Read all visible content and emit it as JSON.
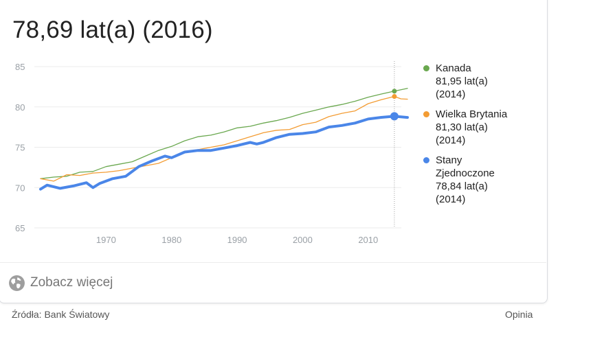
{
  "headline": "78,69 lat(a) (2016)",
  "chart_data": {
    "type": "line",
    "xlim": [
      1960,
      2016
    ],
    "ylim": [
      65,
      85
    ],
    "yticks": [
      65,
      70,
      75,
      80,
      85
    ],
    "xticks": [
      1970,
      1980,
      1990,
      2000,
      2010
    ],
    "yticklabels": [
      "65",
      "70",
      "75",
      "80",
      "85"
    ],
    "xticklabels": [
      "1970",
      "1980",
      "1990",
      "2000",
      "2010"
    ],
    "grid": true,
    "legend_position": "right",
    "highlight_x": 2014,
    "series": [
      {
        "name": "Kanada",
        "color": "#6aa84f",
        "x": [
          1960,
          1962,
          1964,
          1966,
          1968,
          1970,
          1972,
          1974,
          1976,
          1978,
          1980,
          1982,
          1984,
          1986,
          1988,
          1990,
          1992,
          1994,
          1996,
          1998,
          2000,
          2002,
          2004,
          2006,
          2008,
          2010,
          2012,
          2014,
          2016
        ],
        "values": [
          71.1,
          71.3,
          71.4,
          71.9,
          72.0,
          72.6,
          72.9,
          73.2,
          73.9,
          74.6,
          75.1,
          75.8,
          76.3,
          76.5,
          76.9,
          77.4,
          77.6,
          78.0,
          78.3,
          78.7,
          79.2,
          79.6,
          80.0,
          80.3,
          80.7,
          81.2,
          81.6,
          81.95,
          82.3
        ]
      },
      {
        "name": "Wielka Brytania",
        "color": "#f39c33",
        "x": [
          1960,
          1962,
          1964,
          1966,
          1968,
          1970,
          1972,
          1974,
          1976,
          1978,
          1980,
          1982,
          1984,
          1986,
          1988,
          1990,
          1992,
          1994,
          1996,
          1998,
          2000,
          2002,
          2004,
          2006,
          2008,
          2010,
          2012,
          2014,
          2015,
          2016
        ],
        "values": [
          71.1,
          70.8,
          71.6,
          71.5,
          71.8,
          71.9,
          72.1,
          72.4,
          72.7,
          73.0,
          73.7,
          74.3,
          74.7,
          75.0,
          75.3,
          75.8,
          76.3,
          76.8,
          77.1,
          77.2,
          77.8,
          78.1,
          78.8,
          79.2,
          79.5,
          80.4,
          80.9,
          81.3,
          81.0,
          80.96
        ]
      },
      {
        "name": "Stany Zjednoczone",
        "color": "#4a86e8",
        "x": [
          1960,
          1961,
          1963,
          1965,
          1967,
          1968,
          1969,
          1971,
          1973,
          1975,
          1977,
          1979,
          1980,
          1982,
          1984,
          1986,
          1988,
          1990,
          1992,
          1993,
          1994,
          1996,
          1998,
          2000,
          2002,
          2004,
          2006,
          2008,
          2010,
          2012,
          2014,
          2016
        ],
        "values": [
          69.8,
          70.3,
          69.9,
          70.2,
          70.6,
          70.0,
          70.5,
          71.1,
          71.4,
          72.6,
          73.3,
          73.9,
          73.7,
          74.4,
          74.6,
          74.6,
          74.9,
          75.2,
          75.6,
          75.4,
          75.6,
          76.2,
          76.6,
          76.7,
          76.9,
          77.5,
          77.7,
          78.0,
          78.5,
          78.7,
          78.84,
          78.69
        ]
      }
    ]
  },
  "legend": [
    {
      "lines": [
        "Kanada",
        "81,95 lat(a)",
        "(2014)"
      ],
      "color": "#6aa84f"
    },
    {
      "lines": [
        "Wielka Brytania",
        "81,30 lat(a)",
        "(2014)"
      ],
      "color": "#f39c33"
    },
    {
      "lines": [
        "Stany",
        "Zjednoczone",
        "78,84 lat(a)",
        "(2014)"
      ],
      "color": "#4a86e8"
    }
  ],
  "more_label": "Zobacz więcej",
  "source_label": "Źródła: Bank Światowy",
  "feedback_label": "Opinia"
}
